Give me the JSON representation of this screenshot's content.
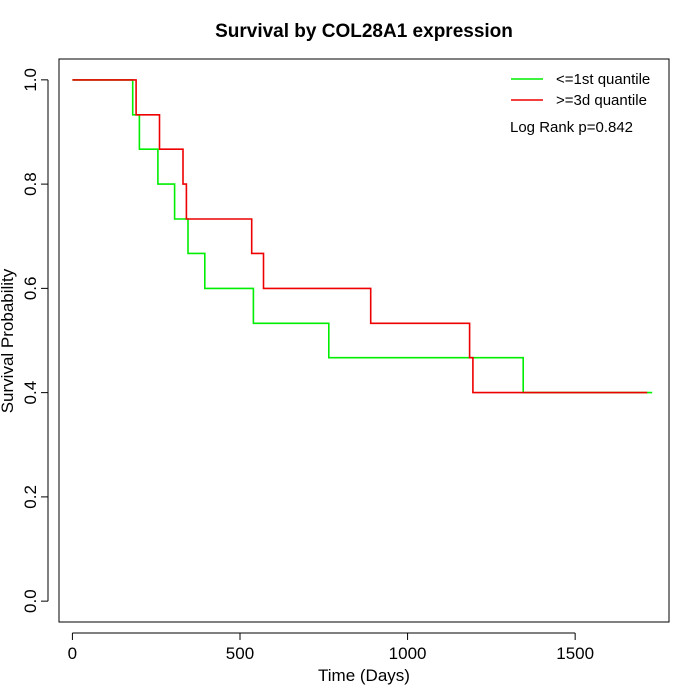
{
  "chart_data": {
    "type": "line",
    "title": "Survival by COL28A1 expression",
    "xlabel": "Time (Days)",
    "ylabel": "Survival Probability",
    "xlim": [
      -40,
      1780
    ],
    "ylim": [
      -0.04,
      1.04
    ],
    "x_ticks": [
      0,
      500,
      1000,
      1500
    ],
    "y_ticks": [
      0.0,
      0.2,
      0.4,
      0.6,
      0.8,
      1.0
    ],
    "x_tick_labels": [
      "0",
      "500",
      "1000",
      "1500"
    ],
    "y_tick_labels": [
      "0.0",
      "0.2",
      "0.4",
      "0.6",
      "0.8",
      "1.0"
    ],
    "grid": false,
    "legend_position": "top-right",
    "annotation": "Log Rank p=0.842",
    "series": [
      {
        "name": "<=1st quantile",
        "color": "#00ee00",
        "x": [
          0,
          180,
          180,
          200,
          200,
          255,
          255,
          305,
          305,
          345,
          345,
          395,
          395,
          540,
          540,
          765,
          765,
          1345,
          1345,
          1730
        ],
        "y": [
          1.0,
          1.0,
          0.933,
          0.933,
          0.867,
          0.867,
          0.8,
          0.8,
          0.733,
          0.733,
          0.667,
          0.667,
          0.6,
          0.6,
          0.533,
          0.533,
          0.467,
          0.467,
          0.4,
          0.4
        ]
      },
      {
        "name": ">=3d quantile",
        "color": "#ee0000",
        "x": [
          0,
          190,
          190,
          260,
          260,
          330,
          330,
          340,
          340,
          535,
          535,
          570,
          570,
          890,
          890,
          1185,
          1185,
          1195,
          1195,
          1715
        ],
        "y": [
          1.0,
          1.0,
          0.933,
          0.933,
          0.867,
          0.867,
          0.8,
          0.8,
          0.733,
          0.733,
          0.667,
          0.667,
          0.6,
          0.6,
          0.533,
          0.533,
          0.467,
          0.467,
          0.4,
          0.4
        ]
      }
    ]
  }
}
